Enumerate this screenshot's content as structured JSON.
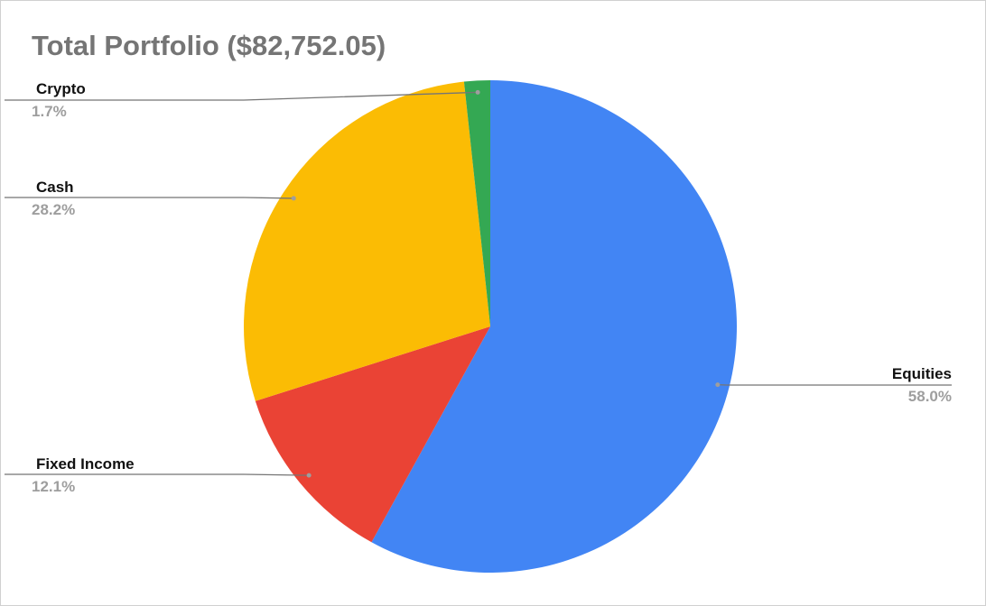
{
  "chart_data": {
    "type": "pie",
    "title": "Total Portfolio ($82,752.05)",
    "categories": [
      "Equities",
      "Fixed Income",
      "Cash",
      "Crypto"
    ],
    "values": [
      58.0,
      12.1,
      28.2,
      1.7
    ],
    "value_labels": [
      "58.0%",
      "12.1%",
      "28.2%",
      "1.7%"
    ],
    "colors": [
      "#4285f4",
      "#ea4335",
      "#fbbc04",
      "#34a853"
    ]
  }
}
